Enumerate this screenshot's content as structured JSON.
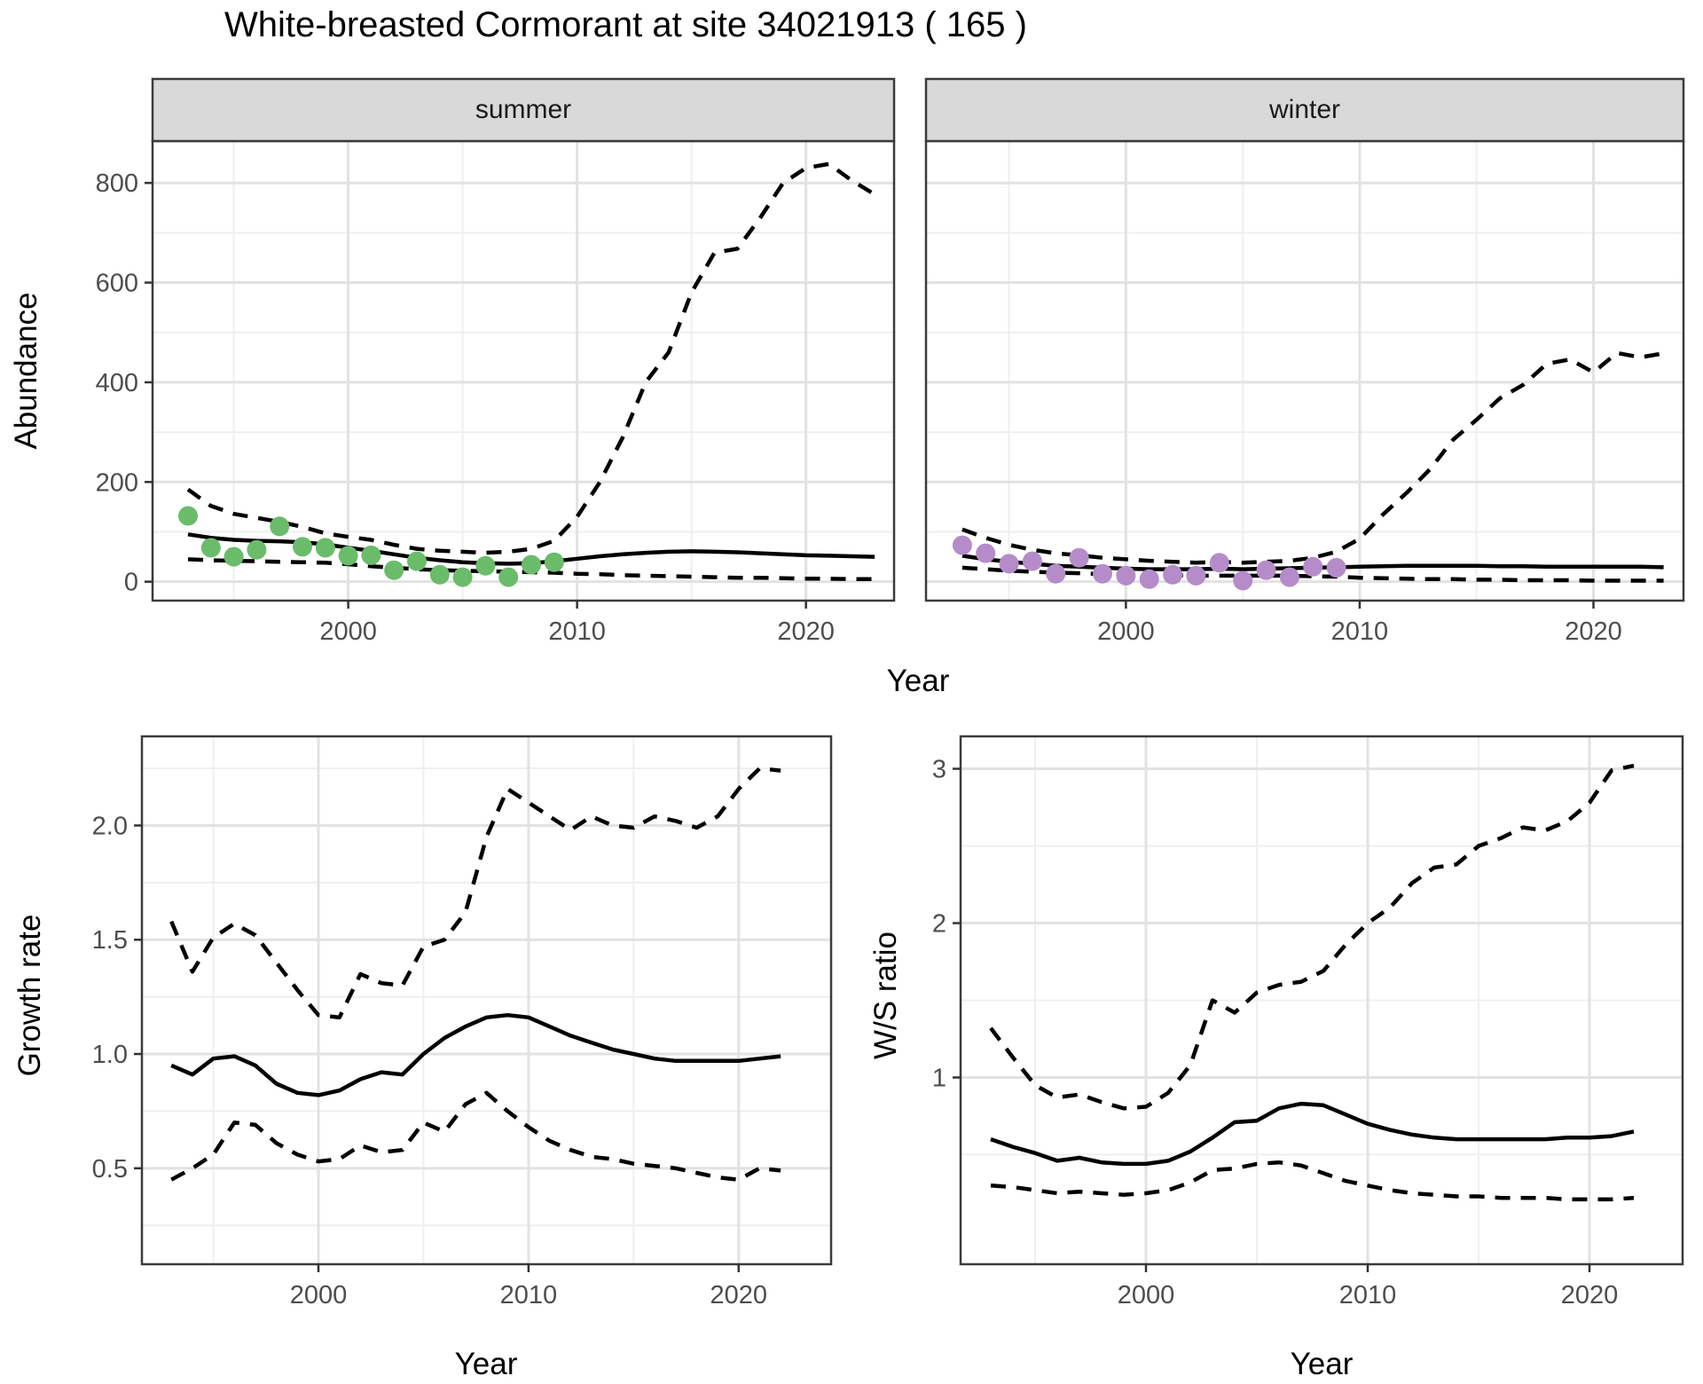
{
  "title": "White-breasted Cormorant at site 34021913 ( 165 )",
  "axes": {
    "top_xlabel": "Year",
    "abundance_ylabel": "Abundance"
  },
  "colors": {
    "summer_point": "#6abc6b",
    "winter_point": "#b58cc9",
    "line": "#000000",
    "strip_bg": "#d9d9d9",
    "panel_border": "#3b3b3b",
    "grid_major": "#e2e2e2",
    "grid_minor": "#efefef",
    "tick_label": "#4d4d4d",
    "tick_mark": "#333333"
  },
  "chart_data": [
    {
      "id": "abundance-summer",
      "type": "line",
      "facet_label": "summer",
      "xlabel": "Year",
      "ylabel": "Abundance",
      "xlim": [
        1991.45,
        2023.85
      ],
      "ylim": [
        -38,
        884
      ],
      "x_ticks": {
        "values": [
          2000,
          2010,
          2020
        ],
        "labels": [
          "2000",
          "2010",
          "2020"
        ]
      },
      "y_ticks": {
        "values": [
          0,
          200,
          400,
          600,
          800
        ],
        "labels": [
          "0",
          "200",
          "400",
          "600",
          "800"
        ]
      },
      "legend": "none",
      "grid": true,
      "point_color": "#6abc6b",
      "points": {
        "x": [
          1993,
          1994,
          1995,
          1996,
          1997,
          1998,
          1999,
          2000,
          2001,
          2002,
          2003,
          2004,
          2005,
          2006,
          2007,
          2008,
          2009
        ],
        "y": [
          132,
          68,
          50,
          64,
          111,
          70,
          68,
          52,
          53,
          23,
          41,
          14,
          9,
          32,
          9,
          34,
          39
        ]
      },
      "series": [
        {
          "name": "median",
          "style": "solid",
          "x": [
            1993,
            1994,
            1995,
            1996,
            1997,
            1998,
            1999,
            2000,
            2001,
            2002,
            2003,
            2004,
            2005,
            2006,
            2007,
            2008,
            2009,
            2010,
            2011,
            2012,
            2013,
            2014,
            2015,
            2016,
            2017,
            2018,
            2019,
            2020,
            2021,
            2022,
            2023
          ],
          "y": [
            95,
            88,
            84,
            82,
            81,
            79,
            75,
            68,
            62,
            55,
            48,
            43,
            39,
            37,
            36,
            37,
            41,
            46,
            51,
            55,
            58,
            60,
            61,
            60,
            59,
            57,
            55,
            53,
            52,
            51,
            50
          ]
        },
        {
          "name": "upper-ci",
          "style": "dashed",
          "x": [
            1993,
            1994,
            1995,
            1996,
            1997,
            1998,
            1999,
            2000,
            2001,
            2002,
            2003,
            2004,
            2005,
            2006,
            2007,
            2008,
            2009,
            2010,
            2011,
            2012,
            2013,
            2014,
            2015,
            2016,
            2017,
            2018,
            2019,
            2020,
            2021,
            2022,
            2023
          ],
          "y": [
            185,
            152,
            136,
            128,
            120,
            110,
            97,
            90,
            84,
            74,
            66,
            62,
            60,
            58,
            60,
            66,
            82,
            130,
            200,
            290,
            400,
            460,
            580,
            660,
            668,
            730,
            800,
            830,
            838,
            805,
            777
          ]
        },
        {
          "name": "lower-ci",
          "style": "dashed",
          "x": [
            1993,
            1994,
            1995,
            1996,
            1997,
            1998,
            1999,
            2000,
            2001,
            2002,
            2003,
            2004,
            2005,
            2006,
            2007,
            2008,
            2009,
            2010,
            2011,
            2012,
            2013,
            2014,
            2015,
            2016,
            2017,
            2018,
            2019,
            2020,
            2021,
            2022,
            2023
          ],
          "y": [
            45,
            43,
            42,
            41,
            40,
            39,
            38,
            35,
            31,
            28,
            25,
            23,
            22,
            21,
            20,
            19,
            18,
            16,
            15,
            13,
            12,
            11,
            10,
            9,
            8,
            8,
            7,
            6,
            6,
            5,
            5
          ]
        }
      ]
    },
    {
      "id": "abundance-winter",
      "type": "line",
      "facet_label": "winter",
      "xlabel": "Year",
      "ylabel": "Abundance",
      "xlim": [
        1991.45,
        2023.85
      ],
      "ylim": [
        -38,
        884
      ],
      "x_ticks": {
        "values": [
          2000,
          2010,
          2020
        ],
        "labels": [
          "2000",
          "2010",
          "2020"
        ]
      },
      "y_ticks": {
        "values": [
          0,
          200,
          400,
          600,
          800
        ],
        "labels": []
      },
      "legend": "none",
      "grid": true,
      "point_color": "#b58cc9",
      "points": {
        "x": [
          1993,
          1994,
          1995,
          1996,
          1997,
          1998,
          1999,
          2000,
          2001,
          2002,
          2003,
          2004,
          2005,
          2006,
          2007,
          2008,
          2009
        ],
        "y": [
          73,
          57,
          36,
          41,
          16,
          48,
          16,
          12,
          5,
          14,
          12,
          38,
          2,
          23,
          9,
          30,
          28
        ]
      },
      "series": [
        {
          "name": "median",
          "style": "solid",
          "x": [
            1993,
            1994,
            1995,
            1996,
            1997,
            1998,
            1999,
            2000,
            2001,
            2002,
            2003,
            2004,
            2005,
            2006,
            2007,
            2008,
            2009,
            2010,
            2011,
            2012,
            2013,
            2014,
            2015,
            2016,
            2017,
            2018,
            2019,
            2020,
            2021,
            2022,
            2023
          ],
          "y": [
            52,
            45,
            40,
            36,
            32,
            30,
            28,
            26,
            25,
            25,
            25,
            26,
            25,
            26,
            27,
            28,
            29,
            30,
            31,
            32,
            32,
            32,
            32,
            31,
            31,
            30,
            30,
            30,
            30,
            30,
            29
          ]
        },
        {
          "name": "upper-ci",
          "style": "dashed",
          "x": [
            1993,
            1994,
            1995,
            1996,
            1997,
            1998,
            1999,
            2000,
            2001,
            2002,
            2003,
            2004,
            2005,
            2006,
            2007,
            2008,
            2009,
            2010,
            2011,
            2012,
            2013,
            2014,
            2015,
            2016,
            2017,
            2018,
            2019,
            2020,
            2021,
            2022,
            2023
          ],
          "y": [
            105,
            88,
            74,
            64,
            57,
            53,
            48,
            45,
            42,
            40,
            38,
            40,
            38,
            40,
            42,
            48,
            60,
            86,
            135,
            178,
            225,
            285,
            325,
            368,
            395,
            437,
            446,
            420,
            459,
            450,
            458
          ]
        },
        {
          "name": "lower-ci",
          "style": "dashed",
          "x": [
            1993,
            1994,
            1995,
            1996,
            1997,
            1998,
            1999,
            2000,
            2001,
            2002,
            2003,
            2004,
            2005,
            2006,
            2007,
            2008,
            2009,
            2010,
            2011,
            2012,
            2013,
            2014,
            2015,
            2016,
            2017,
            2018,
            2019,
            2020,
            2021,
            2022,
            2023
          ],
          "y": [
            28,
            25,
            22,
            20,
            18,
            17,
            15,
            14,
            13,
            13,
            12,
            12,
            12,
            12,
            12,
            11,
            10,
            8,
            7,
            6,
            5,
            5,
            4,
            4,
            3,
            3,
            3,
            2,
            2,
            2,
            2
          ]
        }
      ]
    },
    {
      "id": "growth-rate",
      "type": "line",
      "facet_label": "",
      "xlabel": "Year",
      "ylabel": "Growth rate",
      "xlim": [
        1991.6,
        2024.4
      ],
      "ylim": [
        0.08,
        2.39
      ],
      "x_ticks": {
        "values": [
          2000,
          2010,
          2020
        ],
        "labels": [
          "2000",
          "2010",
          "2020"
        ]
      },
      "y_ticks": {
        "values": [
          0.5,
          1.0,
          1.5,
          2.0
        ],
        "labels": [
          "0.5",
          "1.0",
          "1.5",
          "2.0"
        ]
      },
      "legend": "none",
      "grid": true,
      "point_color": null,
      "points": {
        "x": [],
        "y": []
      },
      "series": [
        {
          "name": "median",
          "style": "solid",
          "x": [
            1993,
            1994,
            1995,
            1996,
            1997,
            1998,
            1999,
            2000,
            2001,
            2002,
            2003,
            2004,
            2005,
            2006,
            2007,
            2008,
            2009,
            2010,
            2011,
            2012,
            2013,
            2014,
            2015,
            2016,
            2017,
            2018,
            2019,
            2020,
            2021,
            2022
          ],
          "y": [
            0.95,
            0.91,
            0.98,
            0.99,
            0.95,
            0.87,
            0.83,
            0.82,
            0.84,
            0.89,
            0.92,
            0.91,
            1.0,
            1.07,
            1.12,
            1.16,
            1.17,
            1.16,
            1.12,
            1.08,
            1.05,
            1.02,
            1.0,
            0.98,
            0.97,
            0.97,
            0.97,
            0.97,
            0.98,
            0.99
          ]
        },
        {
          "name": "upper-ci",
          "style": "dashed",
          "x": [
            1993,
            1994,
            1995,
            1996,
            1997,
            1998,
            1999,
            2000,
            2001,
            2002,
            2003,
            2004,
            2005,
            2006,
            2007,
            2008,
            2009,
            2010,
            2011,
            2012,
            2013,
            2014,
            2015,
            2016,
            2017,
            2018,
            2019,
            2020,
            2021,
            2022
          ],
          "y": [
            1.58,
            1.36,
            1.51,
            1.57,
            1.52,
            1.4,
            1.28,
            1.17,
            1.16,
            1.35,
            1.31,
            1.3,
            1.47,
            1.5,
            1.62,
            1.95,
            2.16,
            2.1,
            2.04,
            1.98,
            2.04,
            2.0,
            1.99,
            2.04,
            2.02,
            1.99,
            2.04,
            2.16,
            2.25,
            2.24
          ]
        },
        {
          "name": "lower-ci",
          "style": "dashed",
          "x": [
            1993,
            1994,
            1995,
            1996,
            1997,
            1998,
            1999,
            2000,
            2001,
            2002,
            2003,
            2004,
            2005,
            2006,
            2007,
            2008,
            2009,
            2010,
            2011,
            2012,
            2013,
            2014,
            2015,
            2016,
            2017,
            2018,
            2019,
            2020,
            2021,
            2022
          ],
          "y": [
            0.45,
            0.5,
            0.56,
            0.7,
            0.69,
            0.61,
            0.56,
            0.53,
            0.54,
            0.6,
            0.57,
            0.58,
            0.7,
            0.66,
            0.78,
            0.83,
            0.75,
            0.68,
            0.62,
            0.58,
            0.55,
            0.54,
            0.52,
            0.51,
            0.5,
            0.48,
            0.46,
            0.45,
            0.5,
            0.49
          ]
        }
      ]
    },
    {
      "id": "ws-ratio",
      "type": "line",
      "facet_label": "",
      "xlabel": "Year",
      "ylabel": "W/S ratio",
      "xlim": [
        1991.64,
        2024.2
      ],
      "ylim": [
        -0.21,
        3.21
      ],
      "x_ticks": {
        "values": [
          2000,
          2010,
          2020
        ],
        "labels": [
          "2000",
          "2010",
          "2020"
        ]
      },
      "y_ticks": {
        "values": [
          1,
          2,
          3
        ],
        "labels": [
          "1",
          "2",
          "3"
        ]
      },
      "legend": "none",
      "grid": true,
      "point_color": null,
      "points": {
        "x": [],
        "y": []
      },
      "series": [
        {
          "name": "median",
          "style": "solid",
          "x": [
            1993,
            1994,
            1995,
            1996,
            1997,
            1998,
            1999,
            2000,
            2001,
            2002,
            2003,
            2004,
            2005,
            2006,
            2007,
            2008,
            2009,
            2010,
            2011,
            2012,
            2013,
            2014,
            2015,
            2016,
            2017,
            2018,
            2019,
            2020,
            2021,
            2022
          ],
          "y": [
            0.6,
            0.55,
            0.51,
            0.46,
            0.48,
            0.45,
            0.44,
            0.44,
            0.46,
            0.52,
            0.61,
            0.71,
            0.72,
            0.8,
            0.83,
            0.82,
            0.76,
            0.7,
            0.66,
            0.63,
            0.61,
            0.6,
            0.6,
            0.6,
            0.6,
            0.6,
            0.61,
            0.61,
            0.62,
            0.65
          ]
        },
        {
          "name": "upper-ci",
          "style": "dashed",
          "x": [
            1993,
            1994,
            1995,
            1996,
            1997,
            1998,
            1999,
            2000,
            2001,
            2002,
            2003,
            2004,
            2005,
            2006,
            2007,
            2008,
            2009,
            2010,
            2011,
            2012,
            2013,
            2014,
            2015,
            2016,
            2017,
            2018,
            2019,
            2020,
            2021,
            2022
          ],
          "y": [
            1.32,
            1.13,
            0.95,
            0.87,
            0.89,
            0.84,
            0.8,
            0.81,
            0.9,
            1.08,
            1.5,
            1.42,
            1.55,
            1.6,
            1.62,
            1.69,
            1.86,
            2.0,
            2.1,
            2.26,
            2.36,
            2.38,
            2.5,
            2.55,
            2.62,
            2.6,
            2.66,
            2.78,
            2.99,
            3.02
          ]
        },
        {
          "name": "lower-ci",
          "style": "dashed",
          "x": [
            1993,
            1994,
            1995,
            1996,
            1997,
            1998,
            1999,
            2000,
            2001,
            2002,
            2003,
            2004,
            2005,
            2006,
            2007,
            2008,
            2009,
            2010,
            2011,
            2012,
            2013,
            2014,
            2015,
            2016,
            2017,
            2018,
            2019,
            2020,
            2021,
            2022
          ],
          "y": [
            0.3,
            0.29,
            0.27,
            0.25,
            0.26,
            0.25,
            0.24,
            0.25,
            0.27,
            0.32,
            0.4,
            0.41,
            0.44,
            0.45,
            0.43,
            0.38,
            0.33,
            0.3,
            0.27,
            0.25,
            0.24,
            0.23,
            0.23,
            0.22,
            0.22,
            0.22,
            0.21,
            0.21,
            0.21,
            0.22
          ]
        }
      ]
    }
  ]
}
